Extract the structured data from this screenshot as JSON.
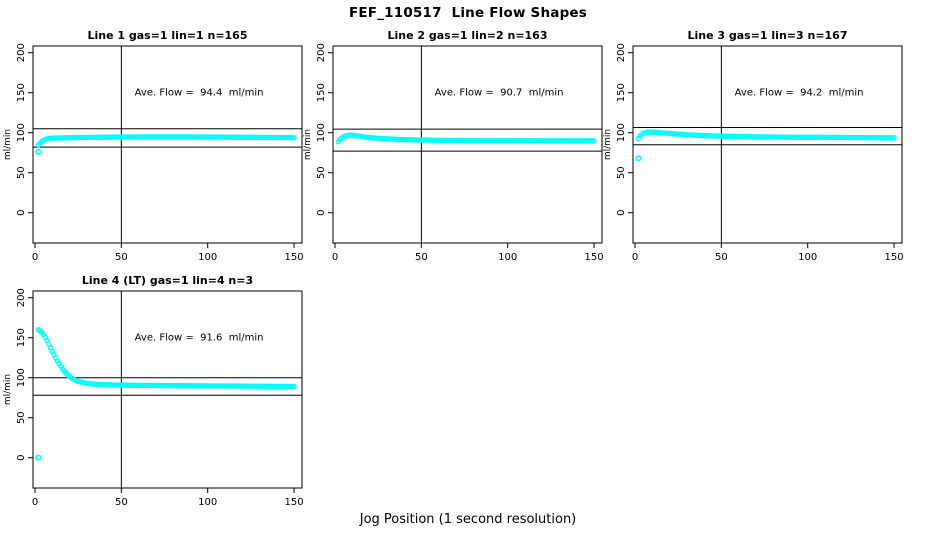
{
  "title": "FEF_110517  Line Flow Shapes",
  "xlabel": "Jog Position (1 second resolution)",
  "colors": {
    "points": "#00FFFF",
    "axis": "#000000",
    "background": "#FFFFFF"
  },
  "chart_data": {
    "type": "scatter",
    "title": "FEF_110517  Line Flow Shapes",
    "xlabel": "Jog Position (1 second resolution)",
    "ylabel": "ml/min",
    "xticks": [
      0,
      50,
      100,
      150
    ],
    "yticks": [
      0,
      50,
      100,
      150,
      200
    ],
    "xlim": [
      -4,
      156
    ],
    "ylim": [
      -38,
      208
    ],
    "vline_x": 50,
    "legend": "none",
    "grid": false,
    "marker": "open-circle",
    "panels": [
      {
        "title": "Line 1 gas=1 lin=1 n=165",
        "annotation": "Ave. Flow =  94.4  ml/min",
        "avg_flow_ml_min": 94.4,
        "n_points": 165,
        "hlines": [
          105,
          82
        ],
        "profile": [
          [
            2,
            84.5
          ],
          [
            3,
            87
          ],
          [
            4,
            89
          ],
          [
            5,
            90.5
          ],
          [
            6,
            91.5
          ],
          [
            7,
            92.3
          ],
          [
            8,
            92.8
          ],
          [
            10,
            93.2
          ],
          [
            15,
            93.5
          ],
          [
            25,
            94
          ],
          [
            40,
            94.4
          ],
          [
            60,
            94.8
          ],
          [
            90,
            94.8
          ],
          [
            120,
            94.3
          ],
          [
            150,
            93.8
          ]
        ],
        "outliers": [
          [
            2,
            76
          ]
        ]
      },
      {
        "title": "Line 2 gas=1 lin=2 n=163",
        "annotation": "Ave. Flow =  90.7  ml/min",
        "avg_flow_ml_min": 90.7,
        "n_points": 163,
        "hlines": [
          104.5,
          77
        ],
        "profile": [
          [
            2,
            88.5
          ],
          [
            3,
            91.5
          ],
          [
            4,
            93.5
          ],
          [
            5,
            95
          ],
          [
            6,
            96
          ],
          [
            8,
            96.8
          ],
          [
            10,
            96.8
          ],
          [
            13,
            96
          ],
          [
            16,
            95
          ],
          [
            20,
            94
          ],
          [
            25,
            93
          ],
          [
            30,
            92.3
          ],
          [
            36,
            91.7
          ],
          [
            42,
            91.2
          ],
          [
            50,
            90.8
          ],
          [
            60,
            90.5
          ],
          [
            75,
            90.2
          ],
          [
            100,
            90
          ],
          [
            125,
            89.9
          ],
          [
            150,
            89.8
          ]
        ],
        "outliers": []
      },
      {
        "title": "Line 3 gas=1 lin=3 n=167",
        "annotation": "Ave. Flow =  94.2  ml/min",
        "avg_flow_ml_min": 94.2,
        "n_points": 167,
        "hlines": [
          106.5,
          85
        ],
        "profile": [
          [
            2,
            92.5
          ],
          [
            3,
            96
          ],
          [
            4,
            98
          ],
          [
            5,
            99.5
          ],
          [
            6,
            100.3
          ],
          [
            8,
            100.8
          ],
          [
            10,
            100.8
          ],
          [
            13,
            100.3
          ],
          [
            16,
            99.7
          ],
          [
            20,
            99
          ],
          [
            25,
            98.2
          ],
          [
            30,
            97.5
          ],
          [
            36,
            96.8
          ],
          [
            42,
            96.2
          ],
          [
            50,
            95.7
          ],
          [
            60,
            95.2
          ],
          [
            75,
            94.7
          ],
          [
            90,
            94.4
          ],
          [
            110,
            94.1
          ],
          [
            130,
            93.9
          ],
          [
            150,
            93.6
          ]
        ],
        "outliers": [
          [
            2,
            68
          ]
        ]
      },
      {
        "title": "Line 4 (LT) gas=1 lin=4 n=3",
        "annotation": "Ave. Flow =  91.6  ml/min",
        "avg_flow_ml_min": 91.6,
        "n_points": 3,
        "hlines": [
          100,
          78
        ],
        "profile": [
          [
            2,
            160
          ],
          [
            3,
            158.5
          ],
          [
            4,
            156.5
          ],
          [
            5,
            154
          ],
          [
            6,
            150.5
          ],
          [
            7,
            146.5
          ],
          [
            8,
            142
          ],
          [
            9,
            137.5
          ],
          [
            10,
            133
          ],
          [
            11,
            129
          ],
          [
            12,
            125
          ],
          [
            13,
            121
          ],
          [
            14,
            117.5
          ],
          [
            15,
            114
          ],
          [
            16,
            111
          ],
          [
            17,
            108.3
          ],
          [
            18,
            105.8
          ],
          [
            19,
            103.6
          ],
          [
            20,
            101.7
          ],
          [
            21,
            100
          ],
          [
            22,
            98.6
          ],
          [
            23,
            97.4
          ],
          [
            24,
            96.4
          ],
          [
            25,
            95.5
          ],
          [
            27,
            94.3
          ],
          [
            29,
            93.4
          ],
          [
            32,
            92.5
          ],
          [
            35,
            91.9
          ],
          [
            40,
            91.3
          ],
          [
            45,
            91
          ],
          [
            50,
            90.8
          ],
          [
            60,
            90.4
          ],
          [
            75,
            90.1
          ],
          [
            90,
            89.9
          ],
          [
            105,
            89.7
          ],
          [
            120,
            89.5
          ],
          [
            135,
            89.3
          ],
          [
            150,
            89
          ]
        ],
        "outliers": [
          [
            2,
            0
          ]
        ]
      }
    ]
  }
}
